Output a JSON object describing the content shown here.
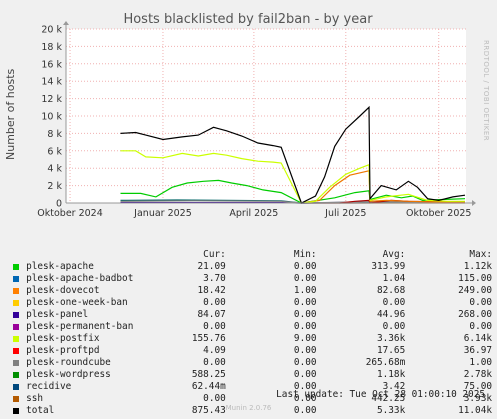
{
  "chart_data": {
    "type": "line",
    "title": "Hosts blacklisted by fail2ban - by year",
    "ylabel": "Number of hosts",
    "ylim": [
      0,
      20000
    ],
    "y_ticks": [
      {
        "v": 0,
        "label": "0"
      },
      {
        "v": 2000,
        "label": "2 k"
      },
      {
        "v": 4000,
        "label": "4 k"
      },
      {
        "v": 6000,
        "label": "6 k"
      },
      {
        "v": 8000,
        "label": "8 k"
      },
      {
        "v": 10000,
        "label": "10 k"
      },
      {
        "v": 12000,
        "label": "12 k"
      },
      {
        "v": 14000,
        "label": "14 k"
      },
      {
        "v": 16000,
        "label": "16 k"
      },
      {
        "v": 18000,
        "label": "18 k"
      },
      {
        "v": 20000,
        "label": "20 k"
      }
    ],
    "x_range": [
      "2024-09-27",
      "2025-10-28"
    ],
    "x_ticks": [
      {
        "date": "2024-10-01",
        "label": "Oktober 2024"
      },
      {
        "date": "2025-01-01",
        "label": "Januar 2025"
      },
      {
        "date": "2025-04-01",
        "label": "April 2025"
      },
      {
        "date": "2025-07-01",
        "label": "Juli 2025"
      },
      {
        "date": "2025-10-01",
        "label": "Oktober 2025"
      }
    ],
    "grid": true,
    "side_label": "RRDTOOL / TOBI OETIKER",
    "series": [
      {
        "name": "total",
        "color": "#000000",
        "points": [
          [
            "2024-11-20",
            8000
          ],
          [
            "2024-12-05",
            8100
          ],
          [
            "2024-12-15",
            7800
          ],
          [
            "2025-01-01",
            7300
          ],
          [
            "2025-01-20",
            7600
          ],
          [
            "2025-02-05",
            7800
          ],
          [
            "2025-02-20",
            8700
          ],
          [
            "2025-03-05",
            8300
          ],
          [
            "2025-03-20",
            7700
          ],
          [
            "2025-04-05",
            6900
          ],
          [
            "2025-04-20",
            6600
          ],
          [
            "2025-04-28",
            6400
          ],
          [
            "2025-05-18",
            0
          ],
          [
            "2025-06-01",
            800
          ],
          [
            "2025-06-10",
            3000
          ],
          [
            "2025-06-20",
            6500
          ],
          [
            "2025-07-01",
            8500
          ],
          [
            "2025-07-15",
            10000
          ],
          [
            "2025-07-24",
            11000
          ],
          [
            "2025-07-25",
            500
          ],
          [
            "2025-08-05",
            2000
          ],
          [
            "2025-08-20",
            1500
          ],
          [
            "2025-09-01",
            2500
          ],
          [
            "2025-09-10",
            1800
          ],
          [
            "2025-09-20",
            500
          ],
          [
            "2025-10-01",
            300
          ],
          [
            "2025-10-15",
            700
          ],
          [
            "2025-10-27",
            900
          ]
        ]
      },
      {
        "name": "plesk-postfix",
        "color": "#ccff00",
        "points": [
          [
            "2024-11-20",
            6000
          ],
          [
            "2024-12-05",
            6000
          ],
          [
            "2024-12-15",
            5300
          ],
          [
            "2025-01-01",
            5200
          ],
          [
            "2025-01-20",
            5700
          ],
          [
            "2025-02-05",
            5400
          ],
          [
            "2025-02-20",
            5700
          ],
          [
            "2025-03-05",
            5500
          ],
          [
            "2025-03-20",
            5100
          ],
          [
            "2025-04-05",
            4800
          ],
          [
            "2025-04-20",
            4700
          ],
          [
            "2025-04-28",
            4600
          ],
          [
            "2025-05-18",
            0
          ],
          [
            "2025-06-01",
            200
          ],
          [
            "2025-06-15",
            1800
          ],
          [
            "2025-07-01",
            3300
          ],
          [
            "2025-07-15",
            4000
          ],
          [
            "2025-07-24",
            4400
          ],
          [
            "2025-07-25",
            300
          ],
          [
            "2025-08-10",
            700
          ],
          [
            "2025-09-01",
            1000
          ],
          [
            "2025-09-20",
            300
          ],
          [
            "2025-10-10",
            200
          ],
          [
            "2025-10-27",
            200
          ]
        ]
      },
      {
        "name": "plesk-dovecot",
        "color": "#ee7700",
        "points": [
          [
            "2025-05-18",
            0
          ],
          [
            "2025-06-05",
            300
          ],
          [
            "2025-06-20",
            2000
          ],
          [
            "2025-07-05",
            3200
          ],
          [
            "2025-07-20",
            3600
          ],
          [
            "2025-07-24",
            3700
          ],
          [
            "2025-07-25",
            200
          ],
          [
            "2025-08-10",
            300
          ],
          [
            "2025-09-01",
            200
          ],
          [
            "2025-10-27",
            50
          ]
        ]
      },
      {
        "name": "plesk-apache",
        "color": "#00cc00",
        "points": [
          [
            "2024-11-20",
            1100
          ],
          [
            "2024-12-10",
            1100
          ],
          [
            "2024-12-25",
            700
          ],
          [
            "2025-01-10",
            1800
          ],
          [
            "2025-01-25",
            2300
          ],
          [
            "2025-02-10",
            2500
          ],
          [
            "2025-02-25",
            2600
          ],
          [
            "2025-03-10",
            2300
          ],
          [
            "2025-03-25",
            2000
          ],
          [
            "2025-04-10",
            1500
          ],
          [
            "2025-04-28",
            1200
          ],
          [
            "2025-05-18",
            0
          ],
          [
            "2025-06-20",
            600
          ],
          [
            "2025-07-10",
            1200
          ],
          [
            "2025-07-24",
            1400
          ],
          [
            "2025-07-25",
            400
          ],
          [
            "2025-08-10",
            900
          ],
          [
            "2025-08-25",
            600
          ],
          [
            "2025-09-05",
            800
          ],
          [
            "2025-09-15",
            300
          ],
          [
            "2025-10-05",
            400
          ],
          [
            "2025-10-27",
            500
          ]
        ]
      },
      {
        "name": "plesk-wordpress",
        "color": "#aa0000",
        "points": [
          [
            "2025-06-25",
            0
          ],
          [
            "2025-07-10",
            200
          ],
          [
            "2025-07-24",
            300
          ],
          [
            "2025-07-25",
            0
          ],
          [
            "2025-08-15",
            300
          ],
          [
            "2025-09-01",
            200
          ],
          [
            "2025-10-27",
            100
          ]
        ]
      },
      {
        "name": "plesk-roundcube",
        "color": "#7f7f7f",
        "points": [
          [
            "2024-11-20",
            200
          ],
          [
            "2025-02-01",
            250
          ],
          [
            "2025-04-28",
            200
          ],
          [
            "2025-05-18",
            0
          ],
          [
            "2025-07-24",
            150
          ],
          [
            "2025-10-27",
            100
          ]
        ]
      },
      {
        "name": "recidive",
        "color": "#006666",
        "points": [
          [
            "2024-11-20",
            300
          ],
          [
            "2025-01-15",
            350
          ],
          [
            "2025-04-28",
            250
          ],
          [
            "2025-05-18",
            0
          ],
          [
            "2025-08-01",
            100
          ],
          [
            "2025-10-27",
            50
          ]
        ]
      },
      {
        "name": "plesk-panel",
        "color": "#330099",
        "points": [
          [
            "2024-11-20",
            50
          ],
          [
            "2025-04-28",
            50
          ],
          [
            "2025-05-18",
            0
          ],
          [
            "2025-07-20",
            100
          ],
          [
            "2025-10-27",
            50
          ]
        ]
      },
      {
        "name": "plesk-apache-badbot",
        "color": "#0066b3",
        "points": [
          [
            "2024-11-20",
            20
          ],
          [
            "2025-04-28",
            20
          ],
          [
            "2025-05-18",
            0
          ],
          [
            "2025-10-27",
            30
          ]
        ]
      },
      {
        "name": "plesk-proftpd",
        "color": "#cc0000",
        "points": [
          [
            "2024-11-20",
            30
          ],
          [
            "2025-04-28",
            30
          ],
          [
            "2025-05-18",
            0
          ],
          [
            "2025-10-27",
            20
          ]
        ]
      },
      {
        "name": "ssh",
        "color": "#b35a00",
        "points": [
          [
            "2025-05-18",
            0
          ],
          [
            "2025-10-27",
            0
          ]
        ]
      }
    ]
  },
  "legend": {
    "headers": {
      "cur": "Cur:",
      "min": "Min:",
      "avg": "Avg:",
      "max": "Max:"
    },
    "rows": [
      {
        "name": "plesk-apache",
        "color": "#00cc00",
        "cur": "21.09",
        "min": "0.00",
        "avg": "313.99",
        "max": "1.12k"
      },
      {
        "name": "plesk-apache-badbot",
        "color": "#0066b3",
        "cur": "3.70",
        "min": "0.00",
        "avg": "1.04",
        "max": "115.00"
      },
      {
        "name": "plesk-dovecot",
        "color": "#ff8000",
        "cur": "18.42",
        "min": "1.00",
        "avg": "82.68",
        "max": "249.00"
      },
      {
        "name": "plesk-one-week-ban",
        "color": "#ffcc00",
        "cur": "0.00",
        "min": "0.00",
        "avg": "0.00",
        "max": "0.00"
      },
      {
        "name": "plesk-panel",
        "color": "#330099",
        "cur": "84.07",
        "min": "0.00",
        "avg": "44.96",
        "max": "268.00"
      },
      {
        "name": "plesk-permanent-ban",
        "color": "#990099",
        "cur": "0.00",
        "min": "0.00",
        "avg": "0.00",
        "max": "0.00"
      },
      {
        "name": "plesk-postfix",
        "color": "#ccff00",
        "cur": "155.76",
        "min": "9.00",
        "avg": "3.36k",
        "max": "6.14k"
      },
      {
        "name": "plesk-proftpd",
        "color": "#ff0000",
        "cur": "4.09",
        "min": "0.00",
        "avg": "17.65",
        "max": "36.97"
      },
      {
        "name": "plesk-roundcube",
        "color": "#808080",
        "cur": "0.00",
        "min": "0.00",
        "avg": "265.68m",
        "max": "1.00"
      },
      {
        "name": "plesk-wordpress",
        "color": "#008f00",
        "cur": "588.25",
        "min": "0.00",
        "avg": "1.18k",
        "max": "2.78k"
      },
      {
        "name": "recidive",
        "color": "#00487d",
        "cur": "62.44m",
        "min": "0.00",
        "avg": "3.42",
        "max": "75.00"
      },
      {
        "name": "ssh",
        "color": "#b35a00",
        "cur": "0.00",
        "min": "0.00",
        "avg": "442.25",
        "max": "3.93k"
      },
      {
        "name": "total",
        "color": "#000000",
        "cur": "875.43",
        "min": "0.00",
        "avg": "5.33k",
        "max": "11.04k"
      }
    ]
  },
  "last_update": "Last update: Tue Oct 28 01:00:10 2025",
  "footer": "Munin 2.0.76"
}
